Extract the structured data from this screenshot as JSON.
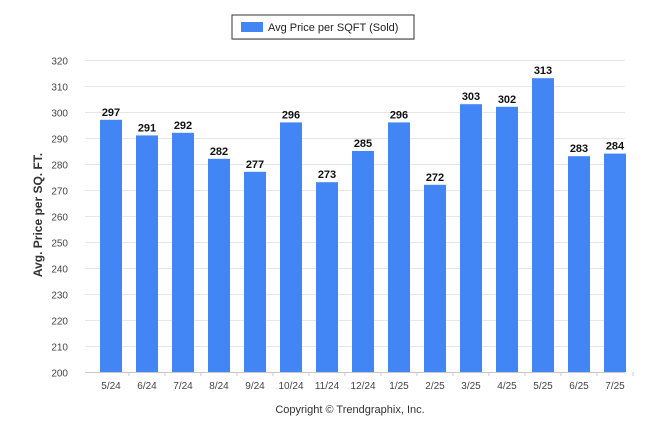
{
  "chart_data": {
    "type": "bar",
    "legend": {
      "label": "Avg Price per SQFT (Sold)",
      "placement": "top-center"
    },
    "series": [
      {
        "name": "Avg Price per SQFT (Sold)",
        "color": "#4285f4",
        "values": [
          297,
          291,
          292,
          282,
          277,
          296,
          273,
          285,
          296,
          272,
          303,
          302,
          313,
          283,
          284
        ]
      }
    ],
    "categories": [
      "5/24",
      "6/24",
      "7/24",
      "8/24",
      "9/24",
      "10/24",
      "11/24",
      "12/24",
      "1/25",
      "2/25",
      "3/25",
      "4/25",
      "5/25",
      "6/25",
      "7/25"
    ],
    "ylabel": "Avg. Price per SQ. FT.",
    "xlabel": "",
    "ylim": [
      200,
      320
    ],
    "yticks": [
      200,
      210,
      220,
      230,
      240,
      250,
      260,
      270,
      280,
      290,
      300,
      310,
      320
    ],
    "grid": true,
    "data_labels": true
  },
  "footer": {
    "copyright": "Copyright © Trendgraphix, Inc."
  }
}
